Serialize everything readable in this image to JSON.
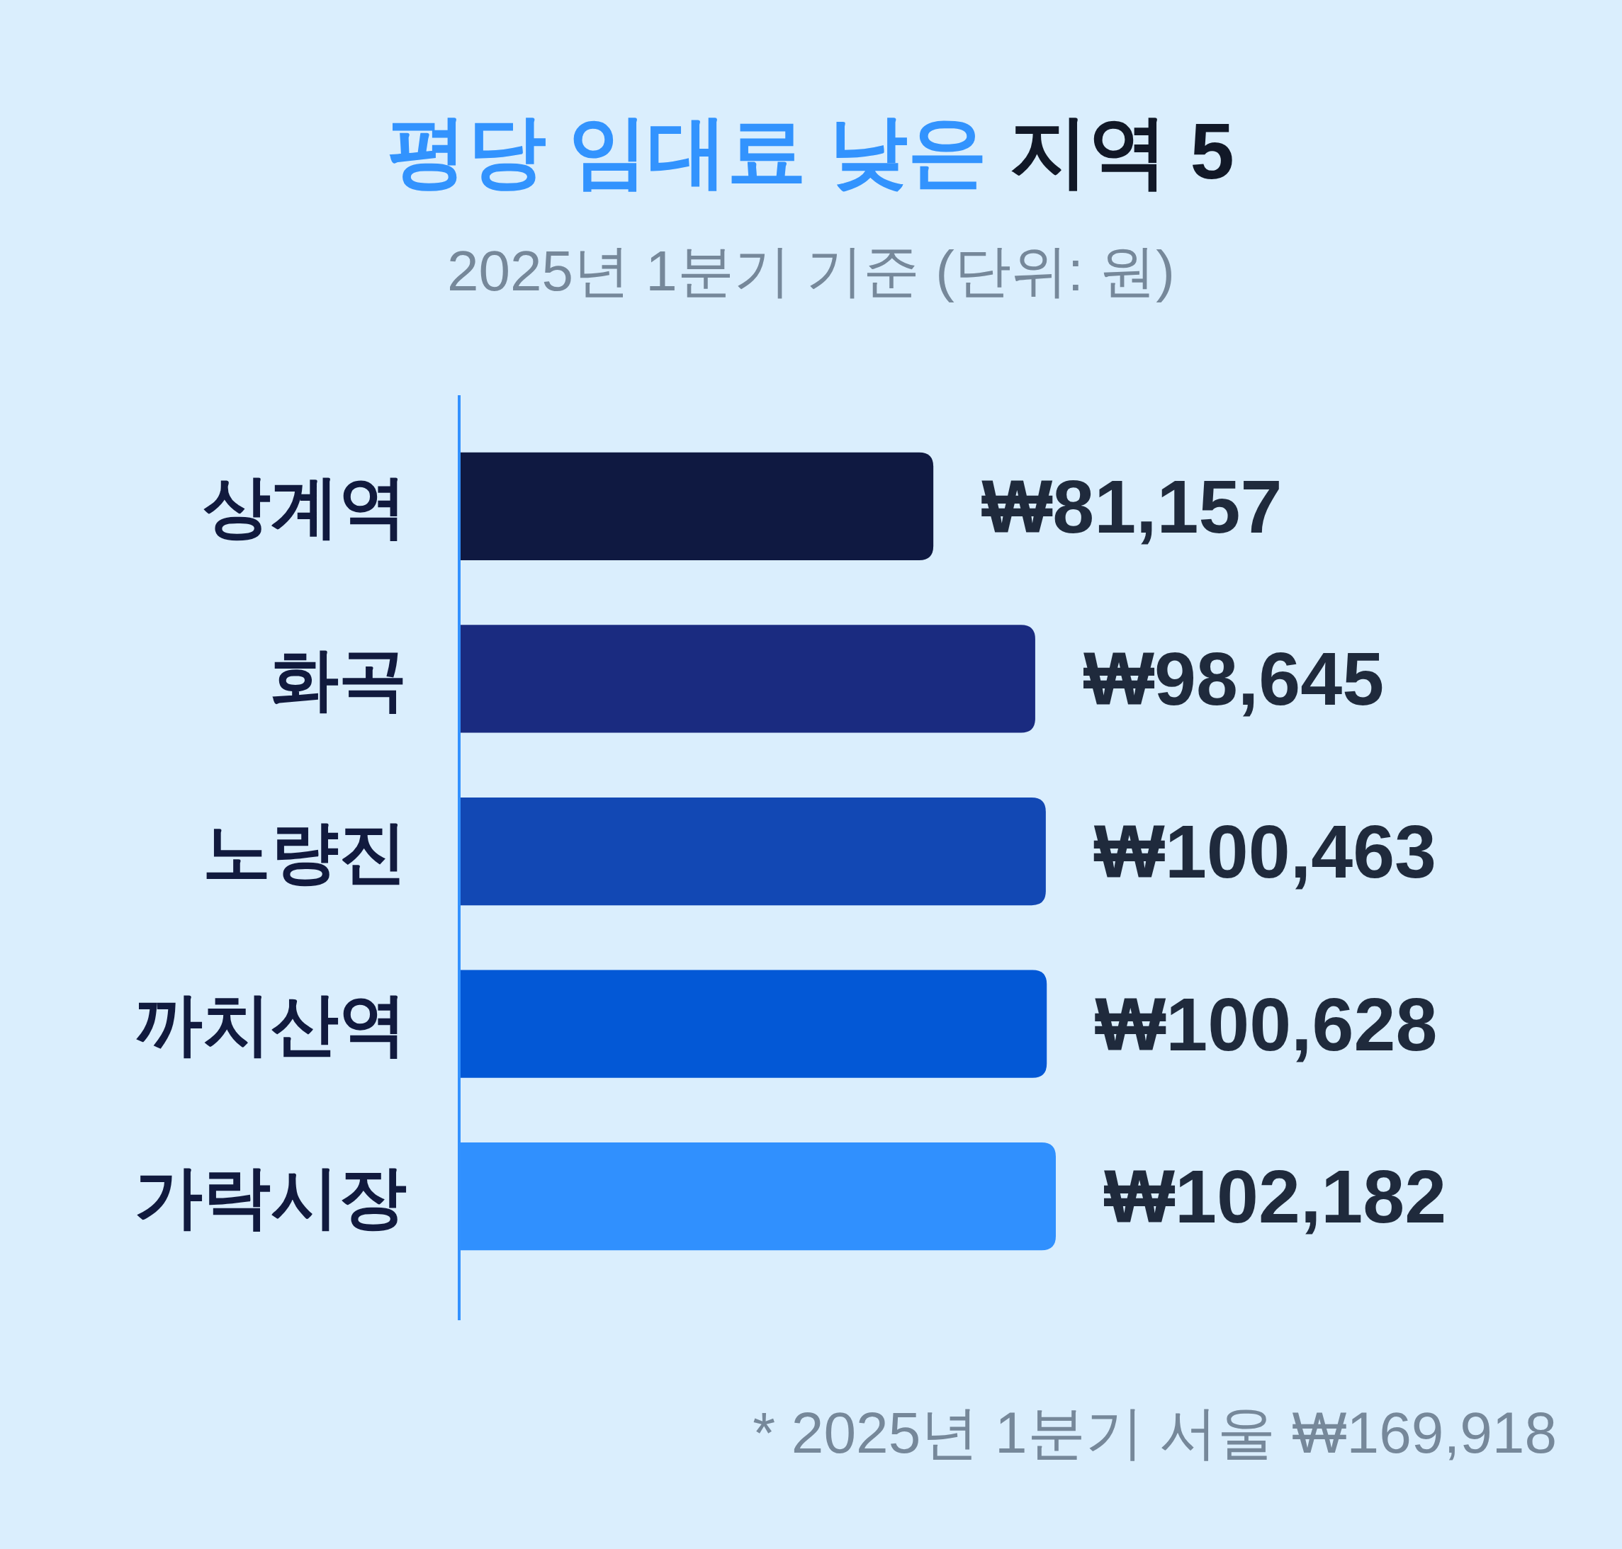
{
  "chart_data": {
    "type": "bar",
    "orientation": "horizontal",
    "title": "평당 임대료 낮은 지역 5",
    "subtitle": "2025년 1분기 기준 (단위: 원)",
    "categories": [
      "상계역",
      "화곡",
      "노량진",
      "까치산역",
      "가락시장"
    ],
    "values": [
      81157,
      98645,
      100463,
      100628,
      102182
    ],
    "colors": [
      "#0f1941",
      "#1a2b80",
      "#1248b4",
      "#0358d6",
      "#3090fe"
    ],
    "value_labels": [
      "₩81,157",
      "₩98,645",
      "₩100,463",
      "₩100,628",
      "₩102,182"
    ],
    "annotations": [
      "* 2025년 1분기 서울 ₩169,918"
    ]
  }
}
